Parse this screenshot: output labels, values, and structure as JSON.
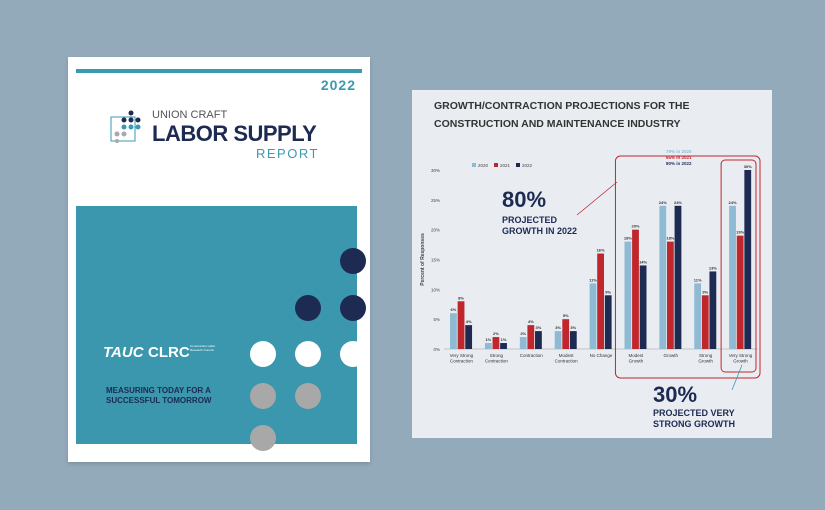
{
  "cover": {
    "year": "2022",
    "title_line1": "UNION CRAFT",
    "title_line2": "LABOR SUPPLY",
    "title_line3": "REPORT",
    "logo1": "TAUC",
    "logo2": "CLRC",
    "logo2_sub": "Construction Labor Research Council",
    "tagline_line1": "MEASURING TODAY FOR A",
    "tagline_line2": "SUCCESSFUL TOMORROW",
    "colors": {
      "teal": "#3a97ae",
      "navy": "#1d2a52",
      "white": "#ffffff",
      "gray": "#a8a8a8"
    }
  },
  "chart_data": {
    "type": "bar",
    "title": "GROWTH/CONTRACTION PROJECTIONS FOR THE CONSTRUCTION AND MAINTENANCE INDUSTRY",
    "title_lines": [
      "GROWTH/CONTRACTION PROJECTIONS FOR THE",
      "CONSTRUCTION AND MAINTENANCE INDUSTRY"
    ],
    "xlabel": "",
    "ylabel": "Percent of Responses",
    "ylim": [
      0,
      30
    ],
    "yticks": [
      "0%",
      "5%",
      "10%",
      "15%",
      "20%",
      "25%",
      "30%"
    ],
    "grid": false,
    "legend_position": "top-left",
    "categories": [
      "Very Strong Contraction",
      "Strong Contraction",
      "Contraction",
      "Modest Contraction",
      "No Change",
      "Modest Growth",
      "Growth",
      "Strong Growth",
      "Very Strong Growth"
    ],
    "series": [
      {
        "name": "2020",
        "color": "#8fbad3",
        "values": [
          6,
          1,
          2,
          3,
          11,
          18,
          24,
          11,
          24
        ]
      },
      {
        "name": "2021",
        "color": "#c0272d",
        "values": [
          8,
          2,
          4,
          5,
          16,
          20,
          18,
          9,
          19
        ]
      },
      {
        "name": "2022",
        "color": "#1d2a52",
        "values": [
          4,
          1,
          3,
          3,
          9,
          14,
          24,
          13,
          30
        ]
      }
    ],
    "annotations": {
      "box_note_lines": [
        "79% in 2020",
        "65% in 2021",
        "80% in 2022"
      ],
      "growth_big": "80%",
      "growth_text_lines": [
        "PROJECTED",
        "GROWTH IN 2022"
      ],
      "strong_big": "30%",
      "strong_text_lines": [
        "PROJECTED VERY",
        "STRONG GROWTH"
      ]
    }
  }
}
